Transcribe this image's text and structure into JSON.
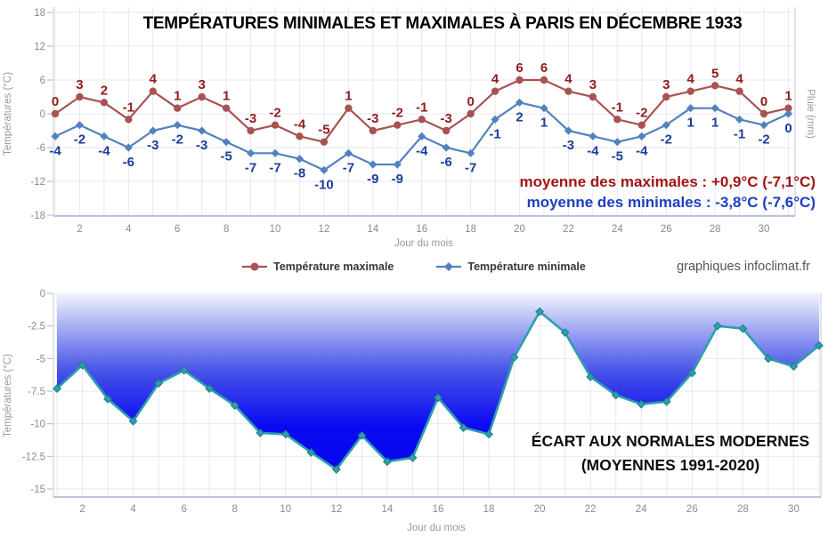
{
  "credit": "graphiques infoclimat.fr",
  "chart_data": [
    {
      "type": "line",
      "title": "TEMPÉRATURES MINIMALES ET MAXIMALES À PARIS EN DÉCEMBRE 1933",
      "xlabel": "Jour du mois",
      "ylabel_left": "Températures (°C)",
      "ylabel_right": "Pluie (mm)",
      "x": [
        1,
        2,
        3,
        4,
        5,
        6,
        7,
        8,
        9,
        10,
        11,
        12,
        13,
        14,
        15,
        16,
        17,
        18,
        19,
        20,
        21,
        22,
        23,
        24,
        25,
        26,
        27,
        28,
        29,
        30,
        31
      ],
      "xticks": [
        2,
        4,
        6,
        8,
        10,
        12,
        14,
        16,
        18,
        20,
        22,
        24,
        26,
        28,
        30
      ],
      "yticks": [
        18,
        12,
        6,
        0,
        -6,
        -12,
        -18
      ],
      "ylim": [
        -18,
        18
      ],
      "grid": true,
      "legend_position": "bottom",
      "series": [
        {
          "name": "Température maximale",
          "marker": "circle",
          "color": "#a95252",
          "label_color": "#8e1d1d",
          "values": [
            0,
            3,
            2,
            -1,
            4,
            1,
            3,
            1,
            -3,
            -2,
            -4,
            -5,
            1,
            -3,
            -2,
            -1,
            -3,
            0,
            4,
            6,
            6,
            4,
            3,
            -1,
            -2,
            3,
            4,
            5,
            4,
            0,
            1
          ]
        },
        {
          "name": "Température minimale",
          "marker": "diamond",
          "color": "#5282bd",
          "label_color": "#1c3e9b",
          "values": [
            -4,
            -2,
            -4,
            -6,
            -3,
            -2,
            -3,
            -5,
            -7,
            -7,
            -8,
            -10,
            -7,
            -9,
            -9,
            -4,
            -6,
            -7,
            -1,
            2,
            1,
            -3,
            -4,
            -5,
            -4,
            -2,
            1,
            1,
            -1,
            -2,
            0
          ]
        }
      ],
      "annotations": [
        {
          "text": "moyenne des maximales : +0,9°C (-7,1°C)",
          "color": "#a31515"
        },
        {
          "text": "moyenne des minimales : -3,8°C (-7,6°C)",
          "color": "#1d3ec2"
        }
      ]
    },
    {
      "type": "area",
      "title_lines": [
        "ÉCART AUX NORMALES MODERNES",
        "(MOYENNES 1991-2020)"
      ],
      "xlabel": "Jour du mois",
      "ylabel": "Températures (°C)",
      "x": [
        1,
        2,
        3,
        4,
        5,
        6,
        7,
        8,
        9,
        10,
        11,
        12,
        13,
        14,
        15,
        16,
        17,
        18,
        19,
        20,
        21,
        22,
        23,
        24,
        25,
        26,
        27,
        28,
        29,
        30,
        31
      ],
      "xticks": [
        2,
        4,
        6,
        8,
        10,
        12,
        14,
        16,
        18,
        20,
        22,
        24,
        26,
        28,
        30
      ],
      "yticks": [
        0,
        -2.5,
        -5,
        -7.5,
        -10,
        -12.5,
        -15
      ],
      "ylim": [
        -15,
        0
      ],
      "grid": true,
      "line_color": "#2d9fac",
      "marker": "diamond",
      "values": [
        -7.3,
        -5.5,
        -8.1,
        -9.8,
        -6.9,
        -5.9,
        -7.3,
        -8.6,
        -10.7,
        -10.8,
        -12.2,
        -13.5,
        -10.9,
        -12.9,
        -12.6,
        -8.0,
        -10.3,
        -10.8,
        -4.9,
        -1.4,
        -3.0,
        -6.4,
        -7.8,
        -8.5,
        -8.3,
        -6.1,
        -2.5,
        -2.7,
        -5.0,
        -5.6,
        -4.0
      ],
      "fill_gradient": [
        {
          "offset": 0,
          "color": "#f3f5fe"
        },
        {
          "offset": 0.18,
          "color": "#a9b2f3"
        },
        {
          "offset": 0.45,
          "color": "#4550e7"
        },
        {
          "offset": 0.75,
          "color": "#0b0bf2"
        },
        {
          "offset": 1,
          "color": "#0505ee"
        }
      ]
    }
  ]
}
